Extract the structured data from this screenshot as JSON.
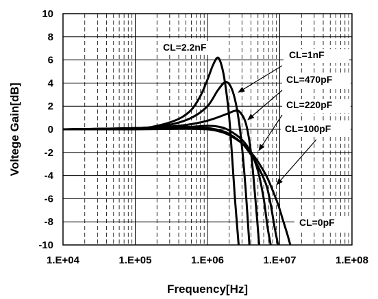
{
  "chart_data": {
    "type": "line",
    "title": "",
    "xlabel": "Frequency[Hz]",
    "ylabel": "Voltege Gain[dB]",
    "x_scale": "log",
    "xlim": [
      10000,
      100000000
    ],
    "ylim": [
      -10,
      10
    ],
    "x_ticks": [
      "1.E+04",
      "1.E+05",
      "1.E+06",
      "1.E+07",
      "1.E+08"
    ],
    "y_ticks": [
      "10",
      "8",
      "6",
      "4",
      "2",
      "0",
      "-2",
      "-4",
      "-6",
      "-8",
      "-10"
    ],
    "grid": true,
    "series": [
      {
        "name": "CL=2.2nF",
        "label_pos": "top-center",
        "x": [
          10000,
          100000,
          200000,
          400000,
          600000,
          800000,
          1000000,
          1200000,
          1400000,
          1600000,
          1800000,
          2000000,
          2200000,
          2400000,
          2700000
        ],
        "y": [
          0,
          0.1,
          0.3,
          0.9,
          1.7,
          2.9,
          4.3,
          5.6,
          6.2,
          5.3,
          3.5,
          1.0,
          -2.5,
          -6.0,
          -10
        ]
      },
      {
        "name": "CL=1nF",
        "label_pos": "right",
        "x": [
          10000,
          100000,
          300000,
          600000,
          1000000,
          1400000,
          1800000,
          2200000,
          2600000,
          3000000,
          3400000,
          3800000
        ],
        "y": [
          0,
          0.1,
          0.4,
          1.0,
          2.0,
          3.4,
          4.1,
          3.4,
          1.5,
          -1.5,
          -5.5,
          -10
        ]
      },
      {
        "name": "CL=470pF",
        "label_pos": "right",
        "x": [
          10000,
          100000,
          400000,
          800000,
          1200000,
          1800000,
          2400000,
          2800000,
          3400000,
          4000000,
          4600000,
          5200000
        ],
        "y": [
          0,
          0.1,
          0.3,
          0.6,
          0.9,
          1.3,
          1.6,
          1.5,
          0.5,
          -2.0,
          -6.0,
          -10
        ]
      },
      {
        "name": "CL=220pF",
        "label_pos": "right",
        "x": [
          10000,
          100000,
          500000,
          1000000,
          1500000,
          2000000,
          3000000,
          4000000,
          5000000,
          6000000,
          6800000,
          7500000
        ],
        "y": [
          0,
          0.1,
          0.2,
          0.3,
          0.2,
          -0.1,
          -0.9,
          -2.0,
          -3.6,
          -6.0,
          -8.5,
          -10
        ]
      },
      {
        "name": "CL=100pF",
        "label_pos": "right",
        "x": [
          10000,
          100000,
          500000,
          1000000,
          1500000,
          2000000,
          3000000,
          4000000,
          5000000,
          6500000,
          7500000,
          8500000,
          9500000
        ],
        "y": [
          0,
          0.05,
          0.1,
          0.1,
          -0.1,
          -0.4,
          -1.2,
          -2.2,
          -3.2,
          -4.8,
          -6.5,
          -8.5,
          -10
        ]
      },
      {
        "name": "CL=0pF",
        "label_pos": "bottom-right",
        "x": [
          10000,
          100000,
          500000,
          1000000,
          1500000,
          2000000,
          3000000,
          4000000,
          5000000,
          6500000,
          8000000,
          9500000,
          11000000,
          12500000,
          14000000
        ],
        "y": [
          0,
          0,
          0.05,
          0,
          -0.2,
          -0.5,
          -1.2,
          -2.0,
          -2.8,
          -4.0,
          -5.3,
          -6.5,
          -7.8,
          -8.9,
          -10
        ]
      }
    ]
  }
}
